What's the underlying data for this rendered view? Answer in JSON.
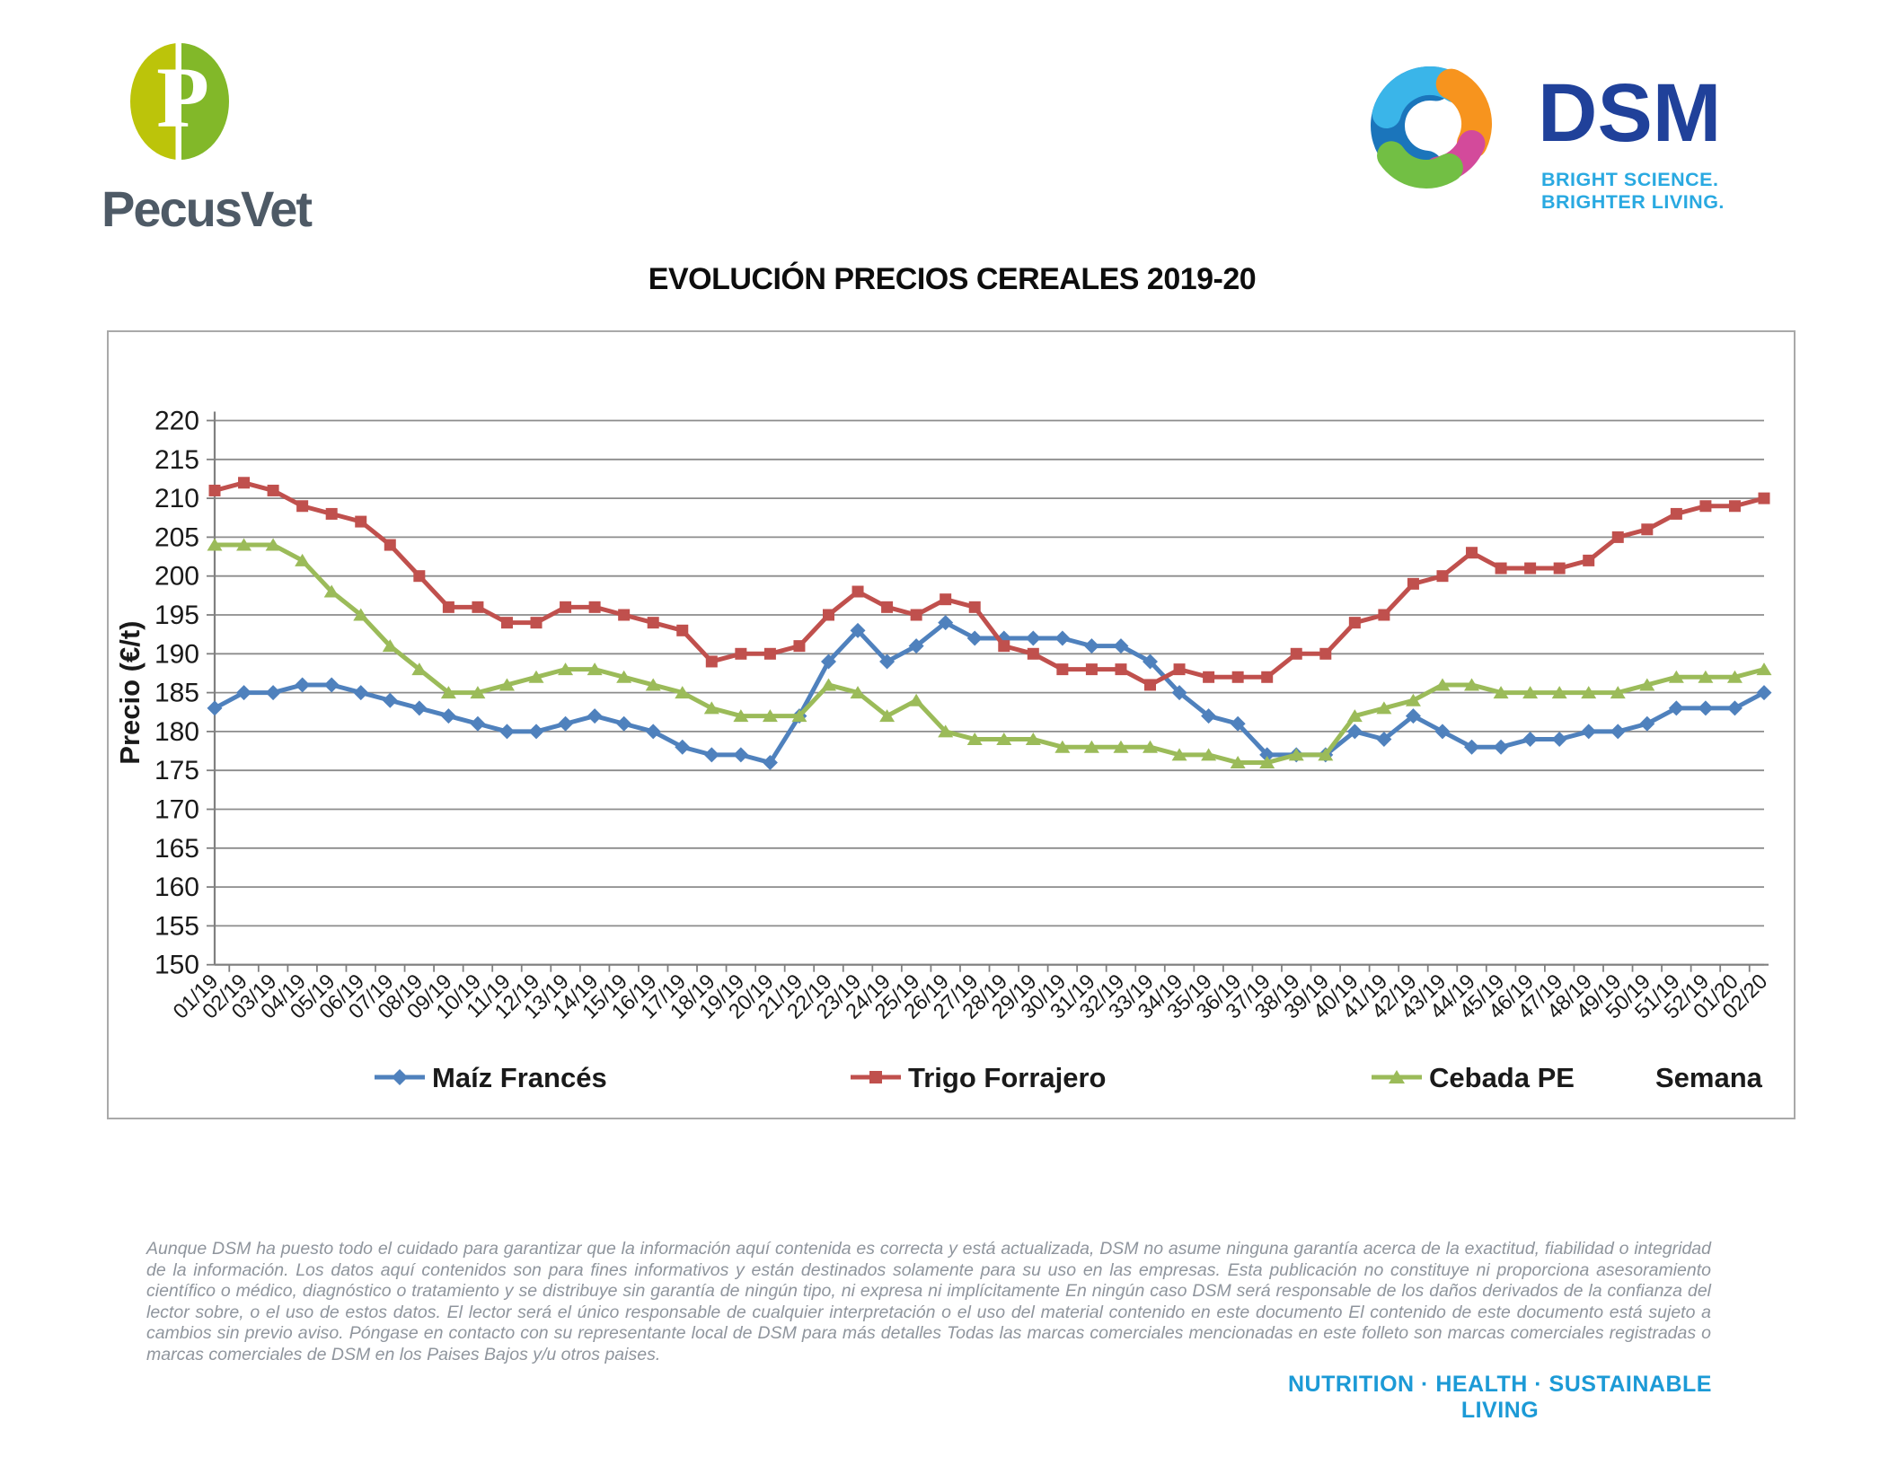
{
  "header": {
    "pecusvet_logo_text": "PecusVet",
    "dsm_logo_text": "DSM",
    "dsm_tagline": "BRIGHT SCIENCE. BRIGHTER LIVING."
  },
  "title": "EVOLUCIÓN PRECIOS CEREALES 2019-20",
  "chart_data": {
    "type": "line",
    "title": "EVOLUCIÓN PRECIOS CEREALES 2019-20",
    "ylabel": "Precio (€/t)",
    "xlabel": "Semana",
    "ylim": [
      150,
      220
    ],
    "ytick_step": 5,
    "grid": true,
    "legend_position": "bottom",
    "categories": [
      "01/19",
      "02/19",
      "03/19",
      "04/19",
      "05/19",
      "06/19",
      "07/19",
      "08/19",
      "09/19",
      "10/19",
      "11/19",
      "12/19",
      "13/19",
      "14/19",
      "15/19",
      "16/19",
      "17/19",
      "18/19",
      "19/19",
      "20/19",
      "21/19",
      "22/19",
      "23/19",
      "24/19",
      "25/19",
      "26/19",
      "27/19",
      "28/19",
      "29/19",
      "30/19",
      "31/19",
      "32/19",
      "33/19",
      "34/19",
      "35/19",
      "36/19",
      "37/19",
      "38/19",
      "39/19",
      "40/19",
      "41/19",
      "42/19",
      "43/19",
      "44/19",
      "45/19",
      "46/19",
      "47/19",
      "48/19",
      "49/19",
      "50/19",
      "51/19",
      "52/19",
      "01/20",
      "02/20"
    ],
    "series": [
      {
        "name": "Maíz Francés",
        "color": "#4f81bd",
        "marker": "diamond",
        "values": [
          183,
          185,
          185,
          186,
          186,
          185,
          184,
          183,
          182,
          181,
          180,
          180,
          181,
          182,
          181,
          180,
          178,
          177,
          177,
          176,
          182,
          189,
          193,
          189,
          191,
          194,
          192,
          192,
          192,
          192,
          191,
          191,
          189,
          185,
          182,
          181,
          177,
          177,
          177,
          180,
          179,
          182,
          180,
          178,
          178,
          179,
          179,
          180,
          180,
          181,
          183,
          183,
          183,
          185
        ]
      },
      {
        "name": "Trigo Forrajero",
        "color": "#c0504d",
        "marker": "square",
        "values": [
          211,
          212,
          211,
          209,
          208,
          207,
          204,
          200,
          196,
          196,
          194,
          194,
          196,
          196,
          195,
          194,
          193,
          189,
          190,
          190,
          191,
          195,
          198,
          196,
          195,
          197,
          196,
          191,
          190,
          188,
          188,
          188,
          186,
          188,
          187,
          187,
          187,
          190,
          190,
          194,
          195,
          199,
          200,
          203,
          201,
          201,
          201,
          202,
          205,
          206,
          208,
          209,
          209,
          210
        ]
      },
      {
        "name": "Cebada PE",
        "color": "#9bbb59",
        "marker": "triangle",
        "values": [
          204,
          204,
          204,
          202,
          198,
          195,
          191,
          188,
          185,
          185,
          186,
          187,
          188,
          188,
          187,
          186,
          185,
          183,
          182,
          182,
          182,
          186,
          185,
          182,
          184,
          180,
          179,
          179,
          179,
          178,
          178,
          178,
          178,
          177,
          177,
          176,
          176,
          177,
          177,
          182,
          183,
          184,
          186,
          186,
          185,
          185,
          185,
          185,
          185,
          186,
          187,
          187,
          187,
          188
        ]
      }
    ]
  },
  "footer": {
    "disclaimer": "Aunque DSM ha puesto todo el cuidado para garantizar que la información aquí contenida es correcta y está actualizada, DSM no asume ninguna garantía acerca de la exactitud, fiabilidad o integridad de la información. Los datos aquí contenidos son para fines informativos y están destinados solamente para su uso en las empresas. Esta publicación no constituye ni proporciona asesoramiento científico o médico, diagnóstico o tratamiento y se distribuye sin garantía de ningún tipo, ni expresa ni implícitamente En ningún caso DSM será responsable de los daños derivados de la confianza del lector sobre, o el uso de estos datos. El lector será el único responsable de cualquier interpretación o el uso del material contenido en este documento El contenido de este documento está sujeto a cambios sin previo aviso. Póngase en contacto con su representante local de DSM para más detalles Todas las marcas comerciales mencionadas en este folleto son marcas comerciales registradas o marcas comerciales de DSM en los Paises Bajos y/u otros paises.",
    "tagline": "NUTRITION · HEALTH · SUSTAINABLE LIVING"
  }
}
